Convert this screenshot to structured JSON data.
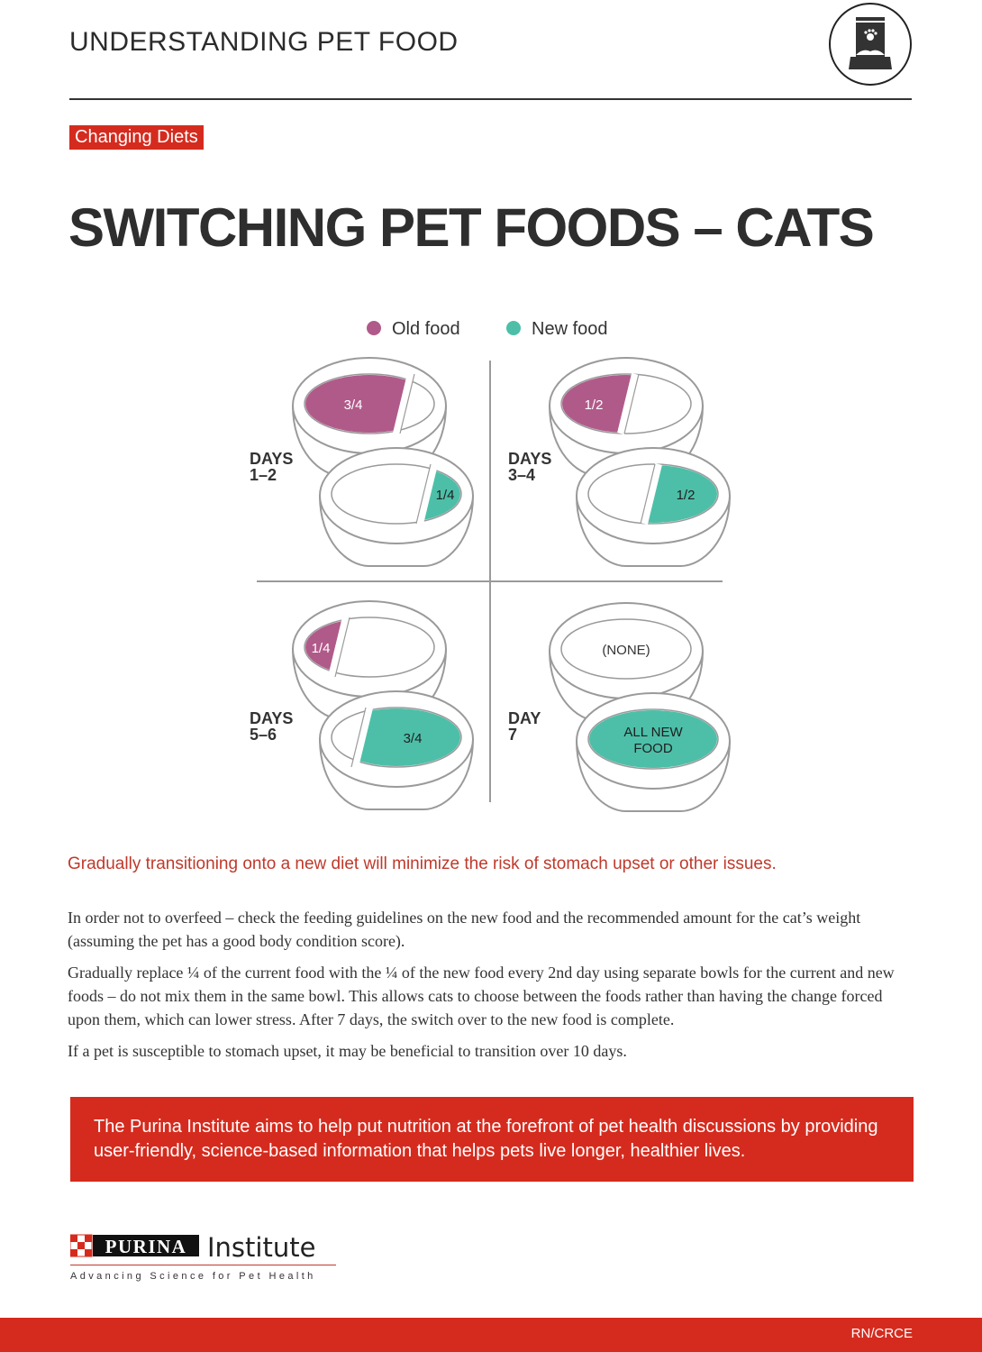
{
  "header": {
    "title": "UNDERSTANDING PET FOOD",
    "icon": "pet-food-bag-icon"
  },
  "tag": "Changing Diets",
  "title": "SWITCHING PET FOODS – CATS",
  "legend": [
    {
      "label": "Old food",
      "color": "#b05a8a"
    },
    {
      "label": "New food",
      "color": "#4dbfa8"
    }
  ],
  "stages": [
    {
      "line1": "DAYS",
      "line2": "1–2",
      "old": 0.75,
      "new": 0.25,
      "old_label": "3/4",
      "new_label": "1/4"
    },
    {
      "line1": "DAYS",
      "line2": "3–4",
      "old": 0.5,
      "new": 0.5,
      "old_label": "1/2",
      "new_label": "1/2"
    },
    {
      "line1": "DAYS",
      "line2": "5–6",
      "old": 0.25,
      "new": 0.75,
      "old_label": "1/4",
      "new_label": "3/4"
    },
    {
      "line1": "DAY",
      "line2": "7",
      "old": 0,
      "new": 1,
      "old_label": "(NONE)",
      "new_label": "ALL NEW FOOD"
    }
  ],
  "lead": "Gradually transitioning onto a new diet will minimize the risk of stomach upset or other issues.",
  "paragraphs": [
    "In order not to overfeed – check the feeding guidelines on the new food and the recommended amount for the cat’s weight (assuming the pet has a good body condition score).",
    "Gradually replace ¼ of the current food with the ¼ of the new food every 2nd day using separate bowls for the current and new foods – do not mix them in the same bowl. This allows cats to choose between the foods rather than having the change forced upon them, which can lower stress. After 7 days, the switch over to the new food is complete.",
    "If a pet is susceptible to stomach upset, it may be beneficial to transition over 10 days."
  ],
  "banner": "The Purina Institute aims to help put nutrition at the forefront of pet health discussions by providing user-friendly, science-based information that helps pets live longer, healthier lives.",
  "logo": {
    "brand": "PURINA",
    "name": "Institute",
    "tagline": "Advancing Science for Pet Health"
  },
  "footer": "RN/CRCE",
  "colors": {
    "accent": "#d52b1e",
    "old": "#b05a8a",
    "new": "#4dbfa8"
  }
}
